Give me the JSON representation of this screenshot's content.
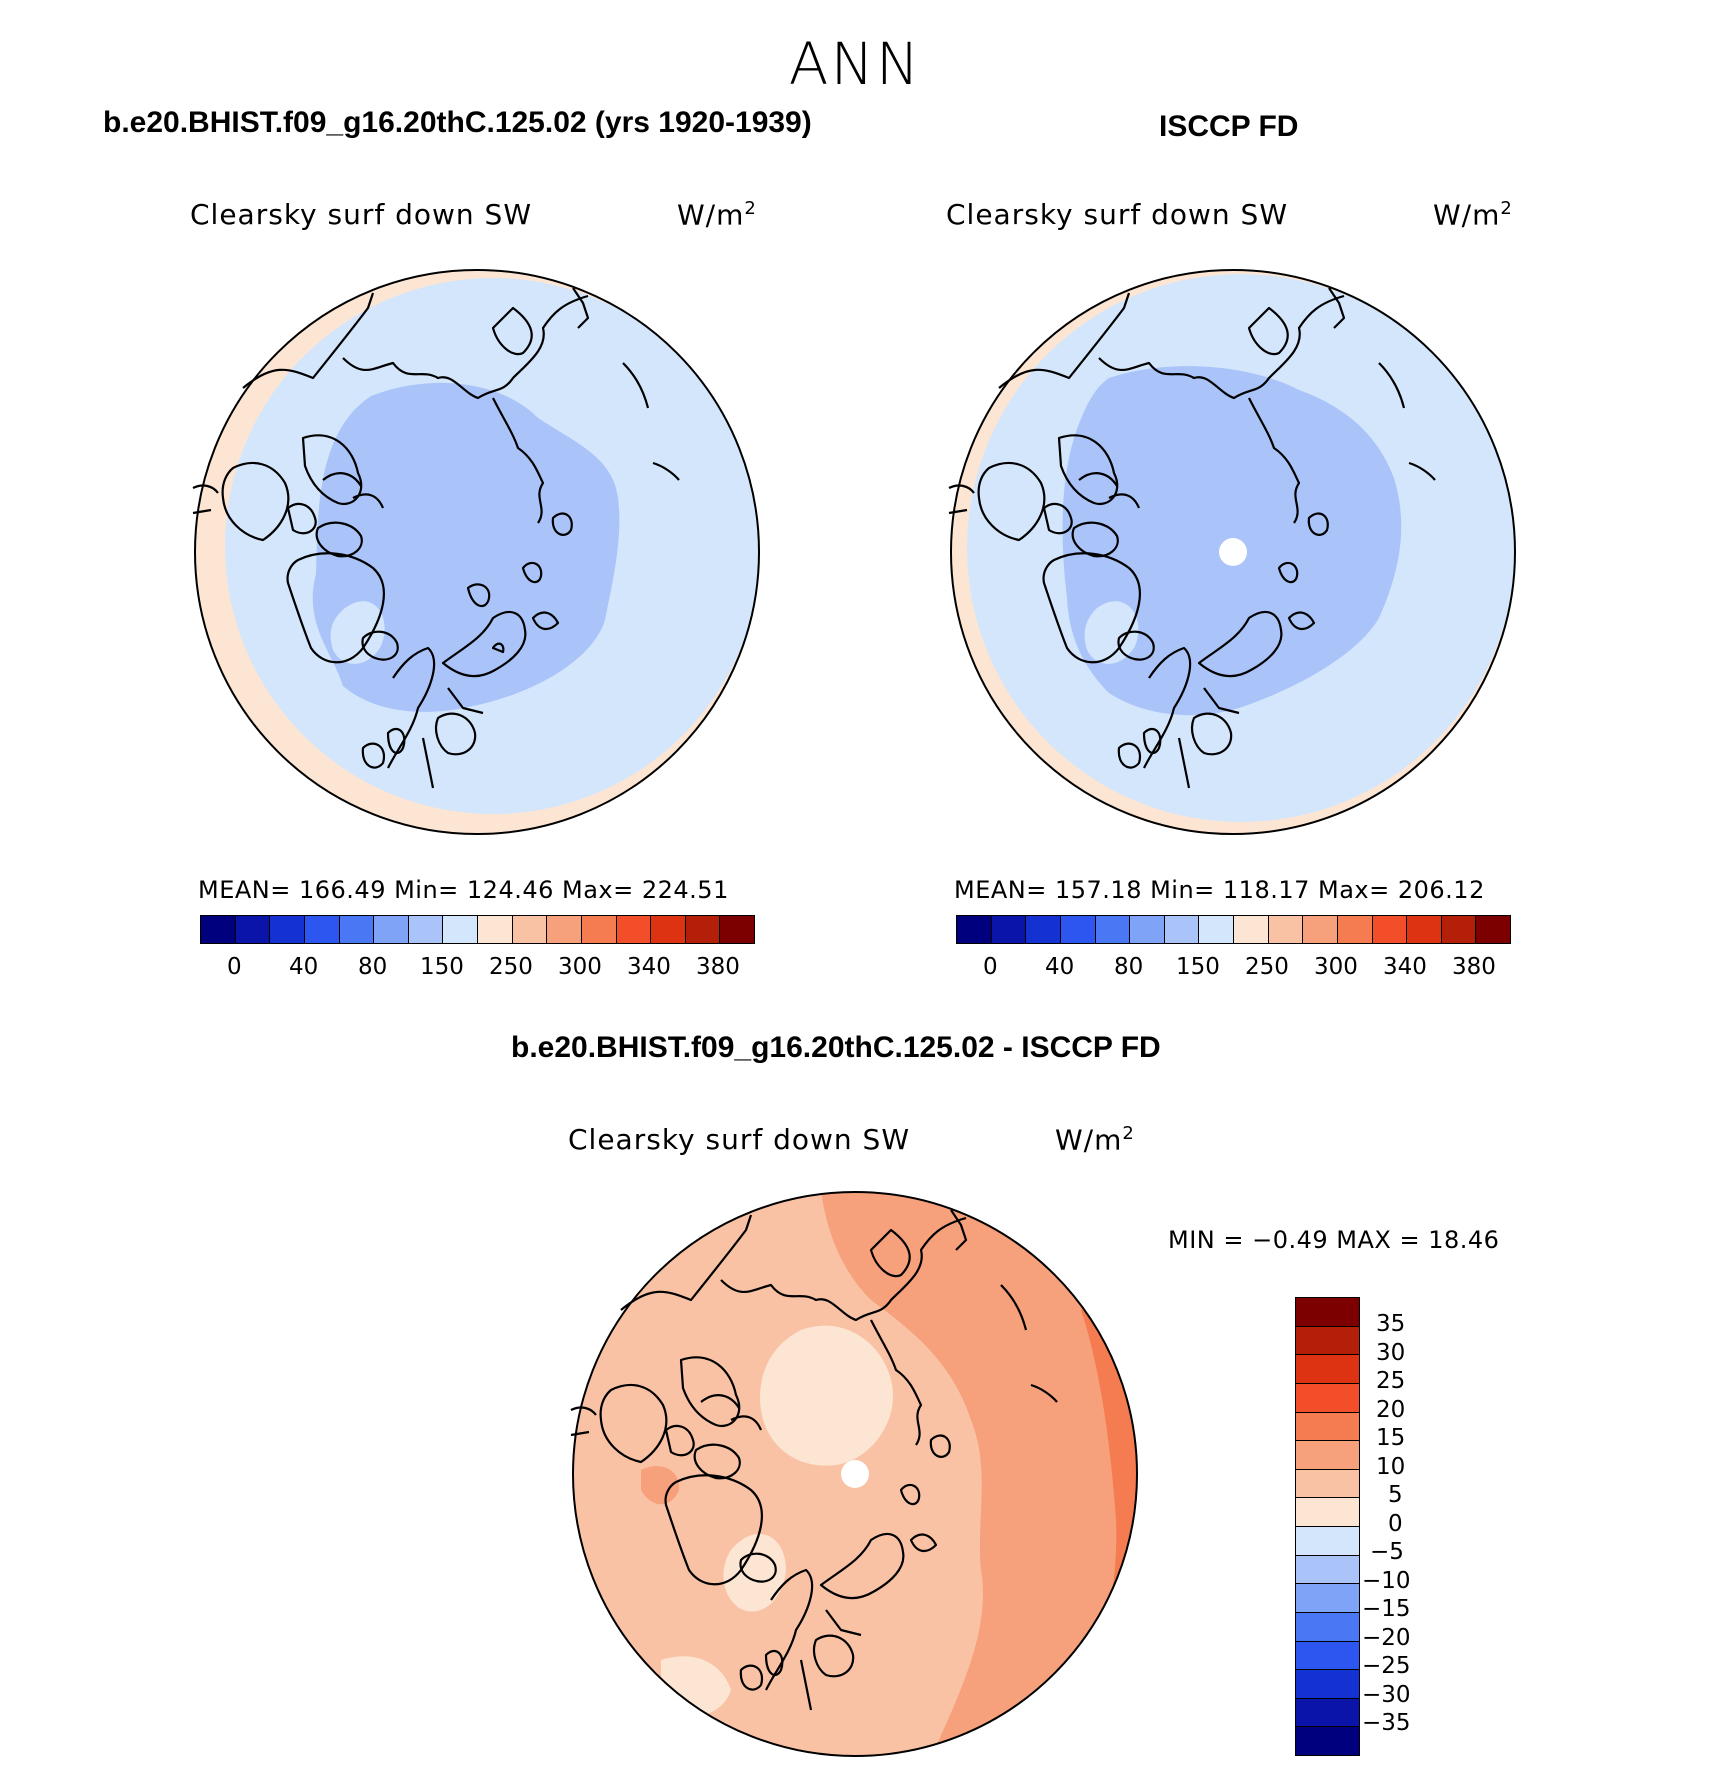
{
  "title": "ANN",
  "panels": [
    {
      "title": "b.e20.BHIST.f09_g16.20thC.125.02 (yrs 1920-1939)",
      "variable": "Clearsky surf down SW",
      "units": "W/m",
      "units_sup": "2",
      "stats": "MEAN= 166.49   Min= 124.46   Max= 224.51"
    },
    {
      "title": "ISCCP FD",
      "variable": "Clearsky surf down SW",
      "units": "W/m",
      "units_sup": "2",
      "stats": "MEAN= 157.18   Min= 118.17   Max= 206.12"
    }
  ],
  "abs_colorbar": {
    "colors": [
      "#00007f",
      "#0a14a8",
      "#1432d2",
      "#2d55f0",
      "#4a78f5",
      "#7ea3f7",
      "#aac4f9",
      "#d3e6fc",
      "#fde5d3",
      "#f9c2a5",
      "#f6a07c",
      "#f57c50",
      "#f34e2a",
      "#dd3312",
      "#b31f08",
      "#7d0000"
    ],
    "labels": [
      "0",
      "40",
      "80",
      "150",
      "250",
      "300",
      "340",
      "380"
    ]
  },
  "diff_panel": {
    "title": "b.e20.BHIST.f09_g16.20thC.125.02 - ISCCP FD",
    "variable": "Clearsky surf down SW",
    "units": "W/m",
    "units_sup": "2",
    "stats": "MIN =   −0.49 MAX =   18.46"
  },
  "diff_colorbar": {
    "colors": [
      "#7d0000",
      "#b31f08",
      "#dd3312",
      "#f34e2a",
      "#f57c50",
      "#f6a07c",
      "#f9c2a5",
      "#fde5d3",
      "#d3e6fc",
      "#aac4f9",
      "#7ea3f7",
      "#4a78f5",
      "#2d55f0",
      "#1432d2",
      "#0a14a8",
      "#00007f"
    ],
    "labels": [
      "35",
      "30",
      "25",
      "20",
      "15",
      "10",
      "5",
      "0",
      "−5",
      "−10",
      "−15",
      "−20",
      "−25",
      "−30",
      "−35"
    ]
  }
}
